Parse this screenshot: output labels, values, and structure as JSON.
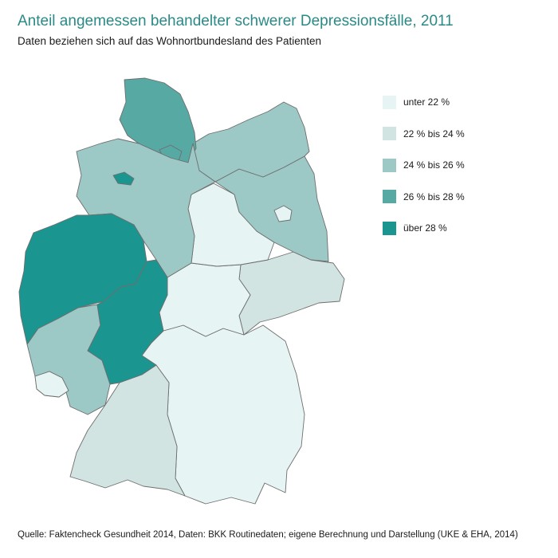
{
  "title": "Anteil angemessen behandelter schwerer Depressionsfälle, 2011",
  "subtitle": "Daten beziehen sich auf das Wohnortbundesland des Patienten",
  "legend": [
    {
      "label": "unter 22 %",
      "color": "#e6f4f3"
    },
    {
      "label": "22 % bis 24 %",
      "color": "#d1e4e2"
    },
    {
      "label": "24 % bis 26 %",
      "color": "#9cc8c6"
    },
    {
      "label": "26 % bis 28 %",
      "color": "#57a9a4"
    },
    {
      "label": "über 28 %",
      "color": "#1a9590"
    }
  ],
  "states": [
    {
      "name": "Schleswig-Holstein",
      "class": "26 % bis 28 %"
    },
    {
      "name": "Hamburg",
      "class": "26 % bis 28 %"
    },
    {
      "name": "Bremen",
      "class": "über 28 %"
    },
    {
      "name": "Niedersachsen",
      "class": "24 % bis 26 %"
    },
    {
      "name": "Mecklenburg-Vorpommern",
      "class": "24 % bis 26 %"
    },
    {
      "name": "Brandenburg",
      "class": "24 % bis 26 %"
    },
    {
      "name": "Berlin",
      "class": "unter 22 %"
    },
    {
      "name": "Sachsen-Anhalt",
      "class": "unter 22 %"
    },
    {
      "name": "Nordrhein-Westfalen",
      "class": "über 28 %"
    },
    {
      "name": "Hessen",
      "class": "über 28 %"
    },
    {
      "name": "Thüringen",
      "class": "unter 22 %"
    },
    {
      "name": "Sachsen",
      "class": "22 % bis 24 %"
    },
    {
      "name": "Rheinland-Pfalz",
      "class": "24 % bis 26 %"
    },
    {
      "name": "Saarland",
      "class": "unter 22 %"
    },
    {
      "name": "Baden-Württemberg",
      "class": "22 % bis 24 %"
    },
    {
      "name": "Bayern",
      "class": "unter 22 %"
    }
  ],
  "source": "Quelle: Faktencheck Gesundheit 2014, Daten: BKK Routinedaten; eigene Berechnung und Darstellung (UKE & EHA, 2014)"
}
